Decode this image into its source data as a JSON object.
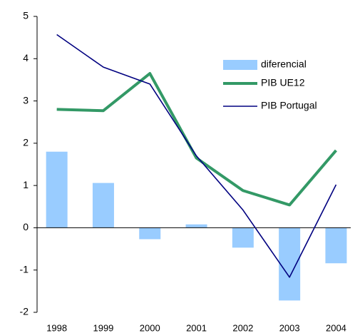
{
  "chart_data": {
    "type": "combo",
    "categories": [
      "1998",
      "1999",
      "2000",
      "2001",
      "2002",
      "2003",
      "2004"
    ],
    "series": [
      {
        "name": "diferencial",
        "type": "bar",
        "color": "#99ccff",
        "values": [
          1.8,
          1.06,
          -0.27,
          0.08,
          -0.47,
          -1.72,
          -0.84
        ]
      },
      {
        "name": "PIB UE12",
        "type": "line",
        "color": "#339966",
        "values": [
          2.8,
          2.77,
          3.65,
          1.65,
          0.88,
          0.54,
          1.83
        ]
      },
      {
        "name": "PIB Portugal",
        "type": "line",
        "color": "#000080",
        "values": [
          4.57,
          3.8,
          3.4,
          1.7,
          0.42,
          -1.17,
          1.02
        ]
      }
    ],
    "ylim": [
      -2,
      5
    ],
    "yticks": [
      -2,
      -1,
      0,
      1,
      2,
      3,
      4,
      5
    ],
    "grid": false
  }
}
